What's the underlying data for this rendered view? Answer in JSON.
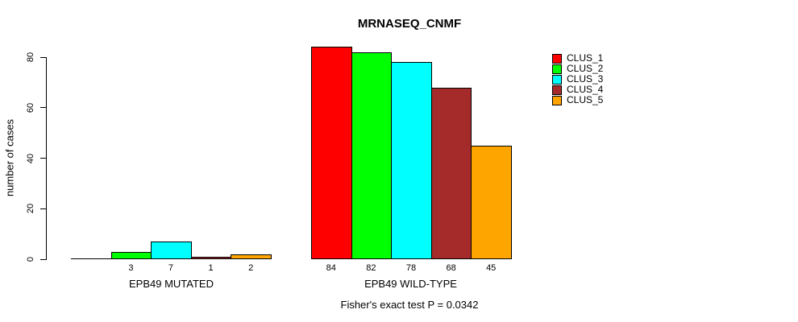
{
  "chart_data": {
    "type": "bar",
    "title": "MRNASEQ_CNMF",
    "xlabel": "",
    "ylabel": "number of cases",
    "subtitle": "Fisher's exact test P = 0.0342",
    "ylim": [
      0,
      80
    ],
    "yticks": [
      0,
      20,
      40,
      60,
      80
    ],
    "ytick_labels": [
      "0",
      "20",
      "40",
      "60",
      "80"
    ],
    "grid": false,
    "legend_position": "right",
    "bar_border_color": "#000000",
    "series_colors": [
      "#FF0000",
      "#00FF00",
      "#00FFFF",
      "#A52A2A",
      "#FFA500"
    ],
    "groups": [
      {
        "label": "EPB49 MUTATED",
        "values": [
          0,
          3,
          7,
          1,
          2
        ],
        "value_labels": [
          "",
          "3",
          "7",
          "1",
          "2"
        ]
      },
      {
        "label": "EPB49 WILD-TYPE",
        "values": [
          84,
          82,
          78,
          68,
          45
        ],
        "value_labels": [
          "84",
          "82",
          "78",
          "68",
          "45"
        ]
      }
    ],
    "legend": [
      {
        "label": "CLUS_1",
        "color": "#FF0000"
      },
      {
        "label": "CLUS_2",
        "color": "#00FF00"
      },
      {
        "label": "CLUS_3",
        "color": "#00FFFF"
      },
      {
        "label": "CLUS_4",
        "color": "#A52A2A"
      },
      {
        "label": "CLUS_5",
        "color": "#FFA500"
      }
    ]
  }
}
